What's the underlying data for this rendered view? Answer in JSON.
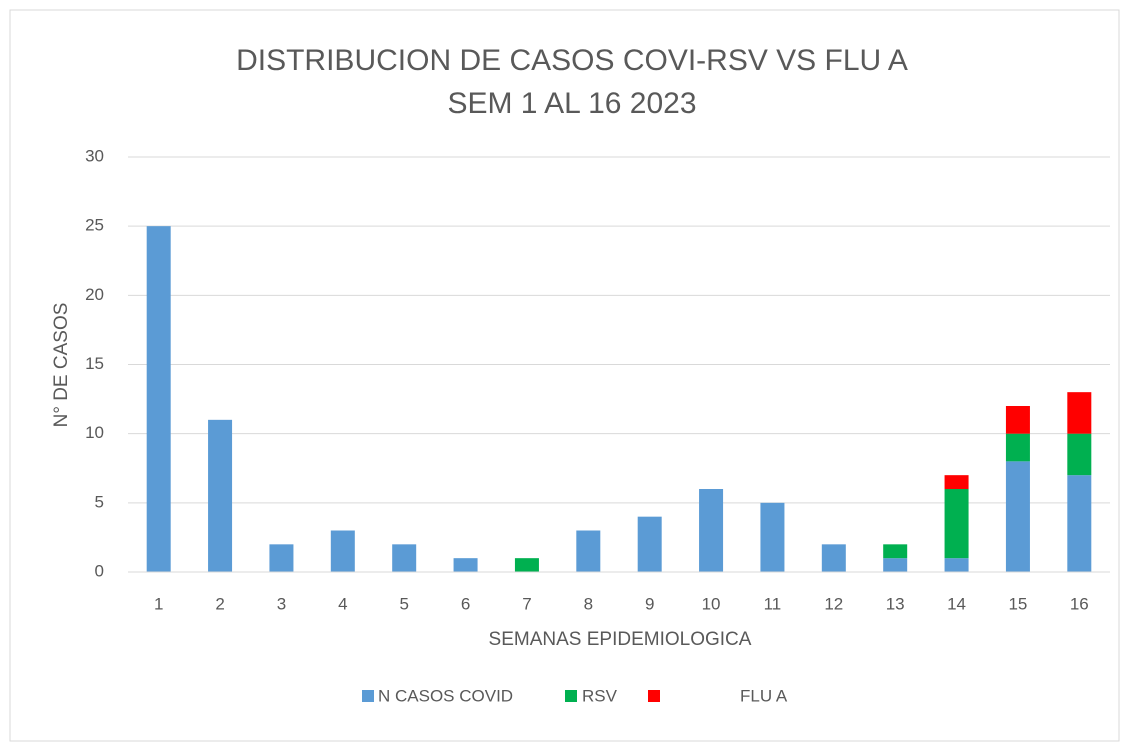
{
  "chart_data": {
    "type": "stacked_bar",
    "title": [
      "DISTRIBUCION DE CASOS COVI-RSV VS FLU A",
      "SEM 1 AL 16 2023"
    ],
    "x_label": "SEMANAS EPIDEMIOLOGICA",
    "y_label": "N°  DE CASOS",
    "categories": [
      "1",
      "2",
      "3",
      "4",
      "5",
      "6",
      "7",
      "8",
      "9",
      "10",
      "11",
      "12",
      "13",
      "14",
      "15",
      "16"
    ],
    "series": [
      {
        "name": "N CASOS COVID",
        "color": "#5b9bd5",
        "values": [
          25,
          11,
          2,
          3,
          2,
          1,
          0,
          3,
          4,
          6,
          5,
          2,
          1,
          1,
          8,
          7
        ]
      },
      {
        "name": "RSV",
        "color": "#00b050",
        "values": [
          0,
          0,
          0,
          0,
          0,
          0,
          1,
          0,
          0,
          0,
          0,
          0,
          1,
          5,
          2,
          3
        ]
      },
      {
        "name": "FLU A",
        "color": "#ff0000",
        "values": [
          0,
          0,
          0,
          0,
          0,
          0,
          0,
          0,
          0,
          0,
          0,
          0,
          0,
          1,
          2,
          3
        ]
      }
    ],
    "ylim": [
      0,
      30
    ],
    "yticks": [
      0,
      5,
      10,
      15,
      20,
      25,
      30
    ],
    "grid": true,
    "legend": "bottom"
  }
}
